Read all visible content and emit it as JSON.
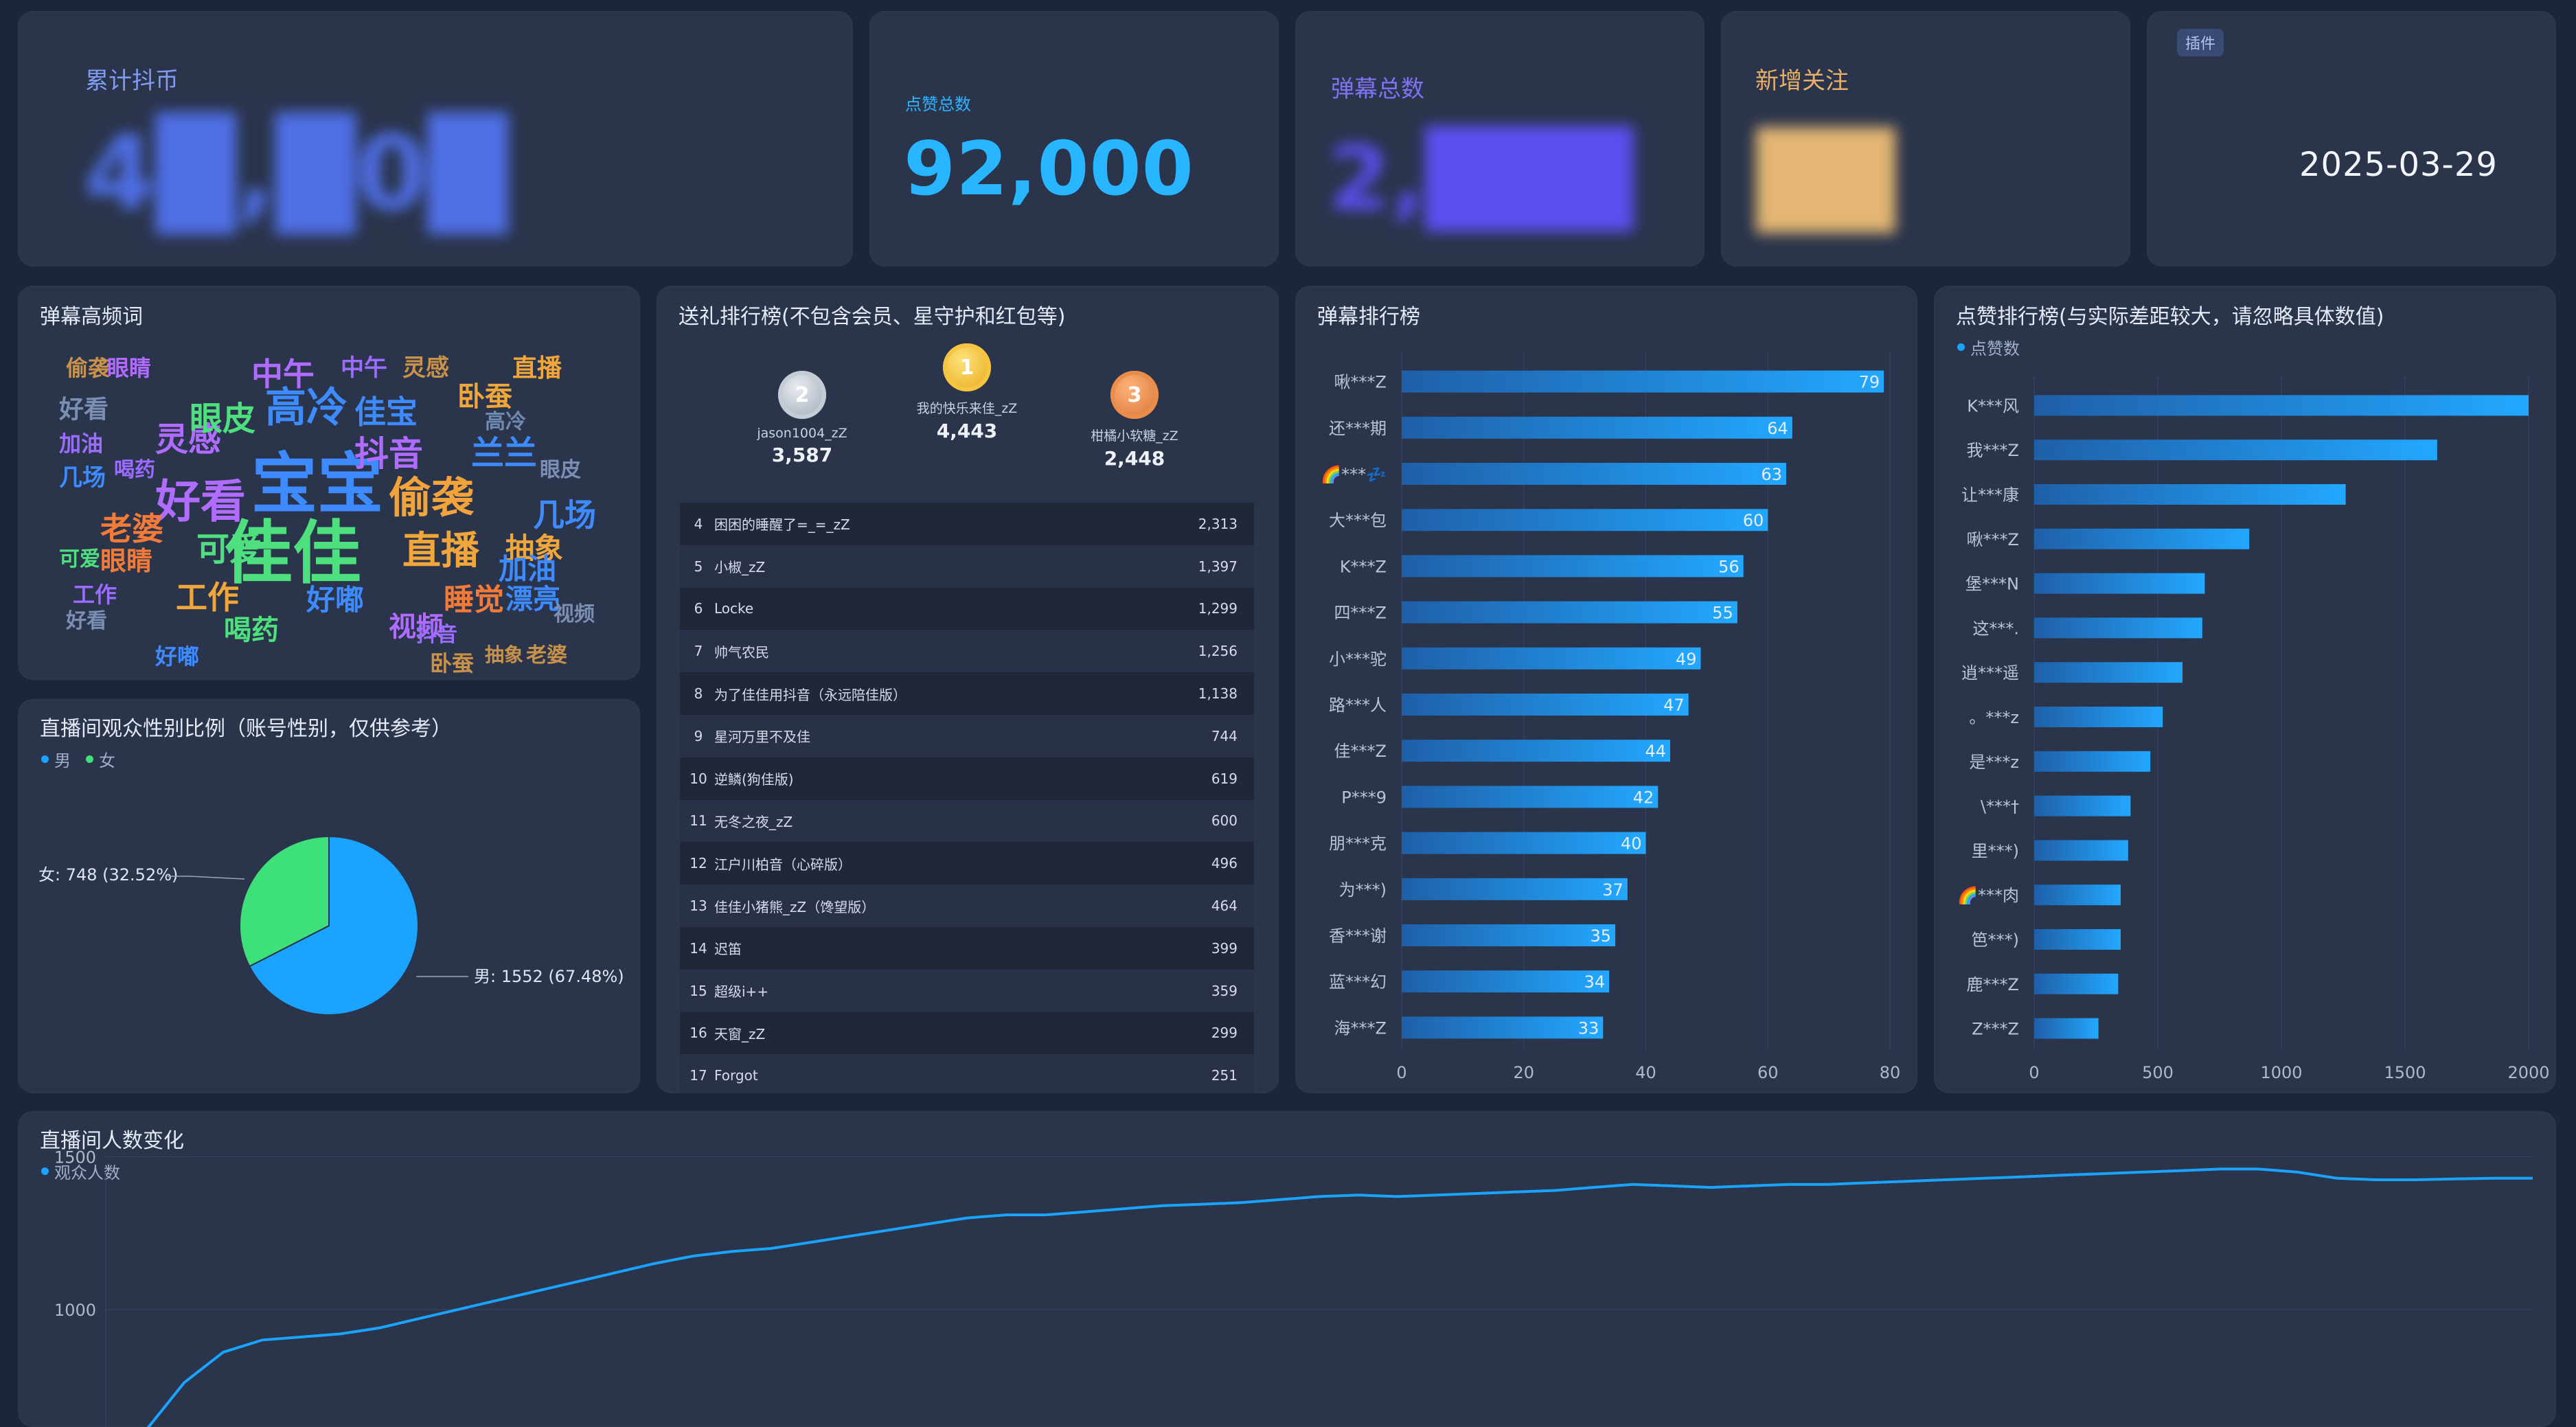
{
  "kpis": {
    "coins": {
      "label": "累计抖币",
      "value": "4█,█0█"
    },
    "likes": {
      "label": "点赞总数",
      "value": "92,000"
    },
    "danmu": {
      "label": "弹幕总数",
      "value": "2,███"
    },
    "follows": {
      "label": "新增关注",
      "value": "██"
    },
    "date": {
      "badge": "插件",
      "value": "2025-03-29"
    }
  },
  "wordcloud": {
    "title": "弹幕高频词",
    "words": [
      "宝宝",
      "佳佳",
      "好看",
      "偷袭",
      "直播",
      "高冷",
      "抖音",
      "灵感",
      "几场",
      "老婆",
      "可爱",
      "工作",
      "眼皮",
      "中午",
      "佳宝",
      "卧蚕",
      "抽象",
      "眼睛",
      "睡觉",
      "漂亮",
      "视频",
      "喝药",
      "好嘟",
      "加油",
      "兰兰",
      "好看",
      "加油",
      "偷袭",
      "高冷",
      "工作",
      "直播",
      "抖音",
      "中午",
      "灵感",
      "几场",
      "眼睛",
      "好嘟",
      "抽象",
      "卧蚕",
      "喝药",
      "可爱",
      "老婆",
      "好看",
      "视频",
      "眼皮"
    ]
  },
  "gender": {
    "title": "直播间观众性别比例（账号性别，仅供参考）",
    "legend": [
      "男",
      "女"
    ],
    "female_label": "女: 748 (32.52%)",
    "male_label": "男: 1552 (67.48%)",
    "colors": {
      "male": "#1aa3ff",
      "female": "#3ee07a"
    },
    "chart_data": {
      "type": "pie",
      "categories": [
        "男",
        "女"
      ],
      "values": [
        1552,
        748
      ]
    }
  },
  "gifts": {
    "title": "送礼排行榜(不包含会员、星守护和红包等)",
    "top": [
      {
        "rank": "2",
        "name": "jason1004_zZ",
        "value": "3,587"
      },
      {
        "rank": "1",
        "name": "我的快乐来佳_zZ",
        "value": "4,443"
      },
      {
        "rank": "3",
        "name": "柑橘小软糖_zZ",
        "value": "2,448"
      }
    ],
    "rows": [
      {
        "rank": "4",
        "name": "困困的睡醒了=_=_zZ",
        "value": "2,313"
      },
      {
        "rank": "5",
        "name": "小椒_zZ",
        "value": "1,397"
      },
      {
        "rank": "6",
        "name": "Locke",
        "value": "1,299"
      },
      {
        "rank": "7",
        "name": "帅气农民",
        "value": "1,256"
      },
      {
        "rank": "8",
        "name": "为了佳佳用抖音（永远陪佳版）",
        "value": "1,138"
      },
      {
        "rank": "9",
        "name": "星河万里不及佳",
        "value": "744"
      },
      {
        "rank": "10",
        "name": "逆鳞(狗佳版)",
        "value": "619"
      },
      {
        "rank": "11",
        "name": "无冬之夜_zZ",
        "value": "600"
      },
      {
        "rank": "12",
        "name": "江户川柏音（心碎版）",
        "value": "496"
      },
      {
        "rank": "13",
        "name": "佳佳小猪熊_zZ（馋望版）",
        "value": "464"
      },
      {
        "rank": "14",
        "name": "迟笛",
        "value": "399"
      },
      {
        "rank": "15",
        "name": "超级i++",
        "value": "359"
      },
      {
        "rank": "16",
        "name": "天窗_zZ",
        "value": "299"
      },
      {
        "rank": "17",
        "name": "Forgot",
        "value": "251"
      }
    ]
  },
  "danmu_rank": {
    "title": "弹幕排行榜",
    "chart_data": {
      "type": "bar",
      "orientation": "horizontal",
      "categories": [
        "啾***Z",
        "还***期",
        "🌈***💤",
        "大***包",
        "K***Z",
        "四***Z",
        "小***驼",
        "路***人",
        "佳***Z",
        "P***9",
        "朋***克",
        "为***)",
        "香***谢",
        "蓝***幻",
        "海***Z"
      ],
      "values": [
        79,
        64,
        63,
        60,
        56,
        55,
        49,
        47,
        44,
        42,
        40,
        37,
        35,
        34,
        33
      ],
      "xlim": [
        0,
        80
      ],
      "xticks": [
        0,
        20,
        40,
        60,
        80
      ],
      "data_labels": true
    }
  },
  "likes_rank": {
    "title": "点赞排行榜(与实际差距较大，请忽略具体数值)",
    "legend": "点赞数",
    "chart_data": {
      "type": "bar",
      "orientation": "horizontal",
      "categories": [
        "K***风",
        "我***Z",
        "让***康",
        "啾***Z",
        "堡***N",
        "这***.",
        "逍***遥",
        "。***z",
        "是***z",
        "\\***†",
        "里***)",
        "🌈***肉",
        "笆***)",
        "鹿***Z",
        "Z***Z"
      ],
      "values": [
        2000,
        1630,
        1260,
        870,
        690,
        680,
        600,
        520,
        470,
        390,
        380,
        350,
        350,
        340,
        260
      ],
      "xlim": [
        0,
        2000
      ],
      "xticks": [
        0,
        500,
        1000,
        1500,
        2000
      ]
    }
  },
  "viewers": {
    "title": "直播间人数变化",
    "legend": "观众人数",
    "chart_data": {
      "type": "line",
      "series": [
        {
          "name": "观众人数",
          "values": [
            450,
            600,
            760,
            860,
            900,
            910,
            920,
            940,
            970,
            1000,
            1030,
            1060,
            1090,
            1120,
            1150,
            1175,
            1190,
            1200,
            1220,
            1240,
            1260,
            1280,
            1300,
            1310,
            1310,
            1320,
            1330,
            1340,
            1345,
            1350,
            1360,
            1370,
            1375,
            1370,
            1375,
            1380,
            1385,
            1390,
            1400,
            1410,
            1405,
            1400,
            1405,
            1410,
            1410,
            1415,
            1420,
            1425,
            1430,
            1435,
            1440,
            1445,
            1450,
            1455,
            1460,
            1460,
            1450,
            1430,
            1425,
            1425,
            1428,
            1430,
            1430
          ]
        }
      ],
      "yticks": [
        500,
        1000,
        1500
      ],
      "ylim": [
        480,
        1560
      ],
      "color": "#1aa3ff"
    }
  }
}
